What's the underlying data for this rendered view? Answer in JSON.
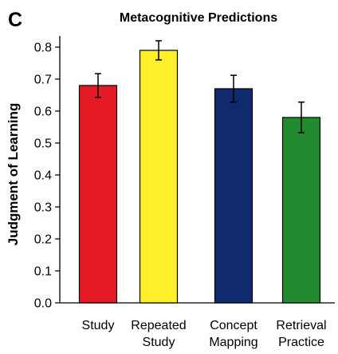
{
  "chart_data": {
    "type": "bar",
    "panel_label": "C",
    "title": "Metacognitive Predictions",
    "ylabel": "Judgment of Learning",
    "xlabel": "",
    "ylim": [
      0,
      0.8
    ],
    "yticks": [
      "0.0",
      "0.1",
      "0.2",
      "0.3",
      "0.4",
      "0.5",
      "0.6",
      "0.7",
      "0.8"
    ],
    "categories": [
      [
        "Study"
      ],
      [
        "Repeated",
        "Study"
      ],
      [
        "Concept",
        "Mapping"
      ],
      [
        "Retrieval",
        "Practice"
      ]
    ],
    "values": [
      0.68,
      0.79,
      0.67,
      0.58
    ],
    "errors": [
      0.037,
      0.03,
      0.042,
      0.048
    ],
    "colors": [
      "#e41b24",
      "#fdf02b",
      "#0f2a6d",
      "#228a2f"
    ],
    "grid": false,
    "legend": "none"
  }
}
